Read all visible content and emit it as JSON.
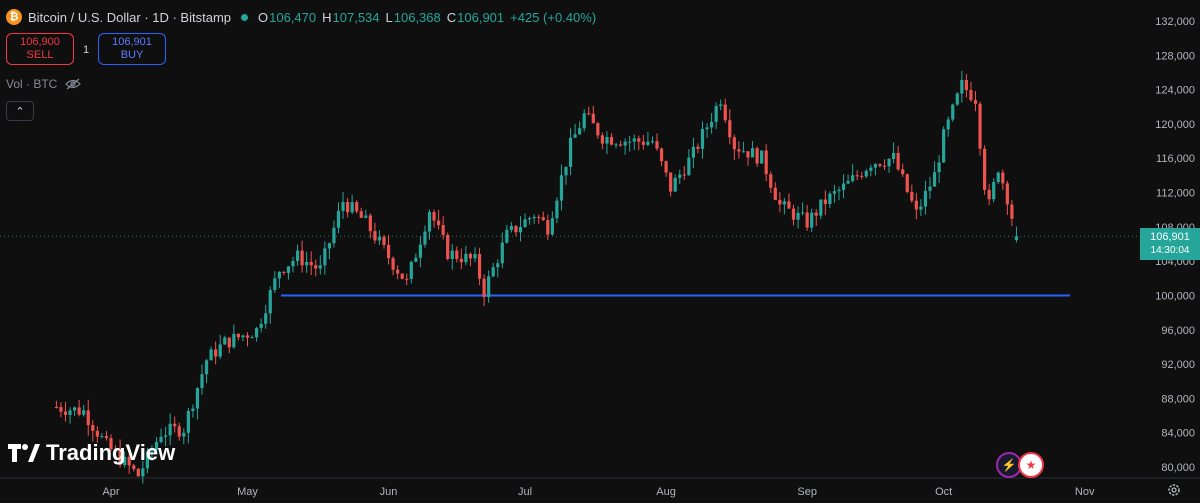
{
  "header": {
    "coin_symbol": "₿",
    "title": "Bitcoin / U.S. Dollar · 1D · Bitstamp",
    "open_label": "O",
    "open_value": "106,470",
    "high_label": "H",
    "high_value": "107,534",
    "low_label": "L",
    "low_value": "106,368",
    "close_label": "C",
    "close_value": "106,901",
    "change": "+425 (+0.40%)"
  },
  "trade": {
    "sell_price": "106,900",
    "sell_label": "SELL",
    "spread": "1",
    "buy_price": "106,901",
    "buy_label": "BUY"
  },
  "volume_label": "Vol · BTC",
  "collapse_symbol": "⌃",
  "logo_text": "TradingView",
  "price_tag": {
    "price": "106,901",
    "countdown": "14:30:04"
  },
  "colors": {
    "up": "#26a69a",
    "down": "#ef5350",
    "level": "#2962ff",
    "background": "#0f0f0f"
  },
  "icons": [
    "bitcoin-icon",
    "eye-off-icon",
    "chevron-up-icon",
    "lightning-icon",
    "us-flag-icon",
    "gear-icon"
  ],
  "chart_data": {
    "type": "candlestick",
    "x_tick_labels": [
      "Apr",
      "May",
      "Jun",
      "Jul",
      "Aug",
      "Sep",
      "Oct",
      "Nov"
    ],
    "y_tick_labels": [
      "80,000",
      "84,000",
      "88,000",
      "92,000",
      "96,000",
      "100,000",
      "104,000",
      "108,000",
      "112,000",
      "116,000",
      "120,000",
      "124,000",
      "128,000",
      "132,000"
    ],
    "ylim": [
      79500,
      132500
    ],
    "dates": [
      "2025-03-20",
      "2025-10-17"
    ],
    "current_price": 106901,
    "horizontal_level": 100000,
    "close_path": [
      [
        "2025-03-20",
        87000
      ],
      [
        "2025-03-26",
        86500
      ],
      [
        "2025-03-31",
        82500
      ],
      [
        "2025-04-07",
        79000
      ],
      [
        "2025-04-12",
        84000
      ],
      [
        "2025-04-17",
        84500
      ],
      [
        "2025-04-22",
        92500
      ],
      [
        "2025-04-26",
        94500
      ],
      [
        "2025-05-03",
        96000
      ],
      [
        "2025-05-08",
        103000
      ],
      [
        "2025-05-12",
        104500
      ],
      [
        "2025-05-17",
        103000
      ],
      [
        "2025-05-22",
        111000
      ],
      [
        "2025-05-27",
        108500
      ],
      [
        "2025-06-01",
        104500
      ],
      [
        "2025-06-05",
        101500
      ],
      [
        "2025-06-10",
        110000
      ],
      [
        "2025-06-14",
        105000
      ],
      [
        "2025-06-20",
        104000
      ],
      [
        "2025-06-22",
        100500
      ],
      [
        "2025-06-27",
        107000
      ],
      [
        "2025-07-03",
        109500
      ],
      [
        "2025-07-06",
        108000
      ],
      [
        "2025-07-11",
        117500
      ],
      [
        "2025-07-14",
        121000
      ],
      [
        "2025-07-18",
        118500
      ],
      [
        "2025-07-24",
        118000
      ],
      [
        "2025-07-29",
        118000
      ],
      [
        "2025-08-02",
        112500
      ],
      [
        "2025-08-07",
        116500
      ],
      [
        "2025-08-13",
        123000
      ],
      [
        "2025-08-16",
        117500
      ],
      [
        "2025-08-22",
        116000
      ],
      [
        "2025-08-26",
        110500
      ],
      [
        "2025-09-01",
        108500
      ],
      [
        "2025-09-05",
        111000
      ],
      [
        "2025-09-10",
        113000
      ],
      [
        "2025-09-15",
        115500
      ],
      [
        "2025-09-20",
        116000
      ],
      [
        "2025-09-25",
        109500
      ],
      [
        "2025-09-29",
        114000
      ],
      [
        "2025-10-01",
        118500
      ],
      [
        "2025-10-05",
        124500
      ],
      [
        "2025-10-08",
        123000
      ],
      [
        "2025-10-10",
        113000
      ],
      [
        "2025-10-11",
        110500
      ],
      [
        "2025-10-13",
        115000
      ],
      [
        "2025-10-15",
        111500
      ],
      [
        "2025-10-17",
        106901
      ]
    ],
    "xlabel": "",
    "ylabel": "",
    "grid": false
  }
}
